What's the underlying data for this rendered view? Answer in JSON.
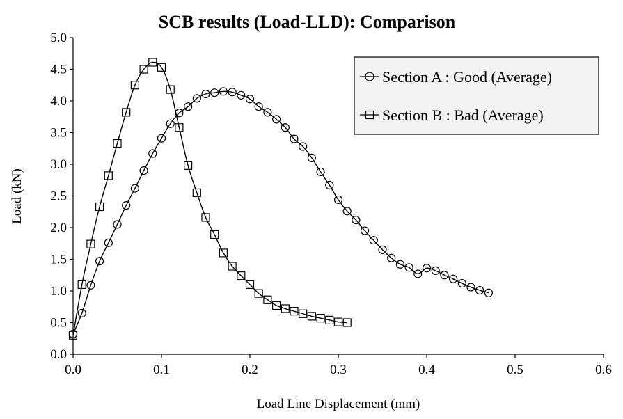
{
  "chart_data": {
    "type": "line",
    "title": "SCB results (Load-LLD): Comparison",
    "xlabel": "Load Line Displacement (mm)",
    "ylabel": "Load (kN)",
    "xlim": [
      0,
      0.6
    ],
    "ylim": [
      0,
      5.0
    ],
    "x_ticks": [
      "0.0",
      "0.1",
      "0.2",
      "0.3",
      "0.4",
      "0.5",
      "0.6"
    ],
    "y_ticks": [
      "0.0",
      "0.5",
      "1.0",
      "1.5",
      "2.0",
      "2.5",
      "3.0",
      "3.5",
      "4.0",
      "4.5",
      "5.0"
    ],
    "grid": false,
    "legend_position": "top-right",
    "series": [
      {
        "name": "Section A : Good (Average)",
        "marker": "circle",
        "color": "#000000",
        "x": [
          0.0,
          0.01,
          0.02,
          0.03,
          0.04,
          0.05,
          0.06,
          0.07,
          0.08,
          0.09,
          0.1,
          0.11,
          0.12,
          0.13,
          0.14,
          0.15,
          0.16,
          0.17,
          0.18,
          0.19,
          0.2,
          0.21,
          0.22,
          0.23,
          0.24,
          0.25,
          0.26,
          0.27,
          0.28,
          0.29,
          0.3,
          0.31,
          0.32,
          0.33,
          0.34,
          0.35,
          0.36,
          0.37,
          0.38,
          0.39,
          0.4,
          0.41,
          0.42,
          0.43,
          0.44,
          0.45,
          0.46,
          0.47
        ],
        "y": [
          0.32,
          0.65,
          1.09,
          1.47,
          1.76,
          2.05,
          2.35,
          2.62,
          2.9,
          3.17,
          3.41,
          3.64,
          3.81,
          3.91,
          4.04,
          4.11,
          4.13,
          4.15,
          4.14,
          4.09,
          4.03,
          3.91,
          3.82,
          3.71,
          3.58,
          3.4,
          3.28,
          3.1,
          2.88,
          2.67,
          2.44,
          2.26,
          2.12,
          1.95,
          1.8,
          1.65,
          1.52,
          1.42,
          1.37,
          1.27,
          1.36,
          1.32,
          1.25,
          1.19,
          1.12,
          1.06,
          1.01,
          0.97
        ]
      },
      {
        "name": "Section B : Bad (Average)",
        "marker": "square",
        "color": "#000000",
        "x": [
          0.0,
          0.01,
          0.02,
          0.03,
          0.04,
          0.05,
          0.06,
          0.07,
          0.08,
          0.09,
          0.1,
          0.11,
          0.12,
          0.13,
          0.14,
          0.15,
          0.16,
          0.17,
          0.18,
          0.19,
          0.2,
          0.21,
          0.22,
          0.23,
          0.24,
          0.25,
          0.26,
          0.27,
          0.28,
          0.29,
          0.3,
          0.31
        ],
        "y": [
          0.3,
          1.1,
          1.74,
          2.33,
          2.82,
          3.33,
          3.82,
          4.25,
          4.5,
          4.61,
          4.53,
          4.18,
          3.58,
          2.98,
          2.55,
          2.16,
          1.89,
          1.6,
          1.39,
          1.24,
          1.1,
          0.96,
          0.86,
          0.77,
          0.72,
          0.68,
          0.64,
          0.6,
          0.57,
          0.54,
          0.51,
          0.5
        ]
      }
    ]
  }
}
